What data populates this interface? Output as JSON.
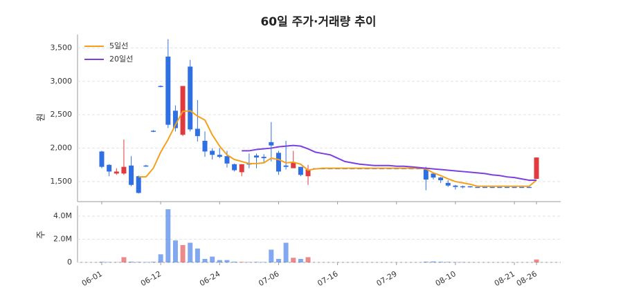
{
  "chart_data": {
    "type": "candlestick",
    "title": "60일 주가·거래량 추이",
    "ylabel": "원",
    "volume_ylabel": "주",
    "categories": [
      "06-01",
      null,
      null,
      null,
      null,
      null,
      null,
      null,
      "06-12",
      null,
      null,
      null,
      null,
      null,
      null,
      null,
      "06-24",
      null,
      null,
      null,
      null,
      null,
      null,
      null,
      "07-06",
      null,
      null,
      null,
      null,
      null,
      null,
      null,
      "07-16",
      null,
      null,
      null,
      null,
      null,
      null,
      null,
      "07-29",
      null,
      null,
      null,
      null,
      null,
      null,
      null,
      "08-10",
      null,
      null,
      null,
      null,
      null,
      null,
      null,
      "08-21",
      null,
      null,
      "08-26"
    ],
    "open": [
      1950,
      1750,
      1620,
      1620,
      1740,
      1580,
      1740,
      2260,
      2930,
      3370,
      2560,
      2200,
      3220,
      2290,
      2110,
      1960,
      1900,
      1880,
      1760,
      1640,
      1770,
      1890,
      1870,
      2090,
      1930,
      1740,
      1700,
      1720,
      1580,
      1700,
      1700,
      1700,
      1700,
      1700,
      1700,
      1700,
      1700,
      1700,
      1700,
      1700,
      1700,
      1700,
      1700,
      1700,
      1680,
      1620,
      1560,
      1480,
      1440,
      1430,
      1430,
      1420,
      1420,
      1420,
      1420,
      1420,
      1420,
      1420,
      1420,
      1540
    ],
    "high": [
      1960,
      1760,
      1700,
      2130,
      1880,
      1590,
      1750,
      2270,
      2940,
      3630,
      2640,
      2930,
      3320,
      2720,
      2250,
      2000,
      2000,
      1960,
      1770,
      1760,
      1920,
      1920,
      1910,
      2390,
      1960,
      2110,
      1960,
      1720,
      1750,
      1700,
      1700,
      1700,
      1700,
      1700,
      1700,
      1700,
      1700,
      1700,
      1700,
      1700,
      1700,
      1700,
      1700,
      1700,
      1720,
      1630,
      1570,
      1520,
      1450,
      1440,
      1430,
      1420,
      1420,
      1420,
      1420,
      1420,
      1420,
      1420,
      1420,
      1860
    ],
    "low": [
      1700,
      1580,
      1600,
      1600,
      1430,
      1320,
      1720,
      2240,
      2910,
      2300,
      2250,
      2180,
      2250,
      2100,
      1870,
      1830,
      1850,
      1710,
      1650,
      1580,
      1700,
      1700,
      1780,
      1800,
      1600,
      1680,
      1700,
      1580,
      1450,
      1700,
      1700,
      1700,
      1700,
      1700,
      1700,
      1700,
      1700,
      1700,
      1700,
      1700,
      1700,
      1700,
      1700,
      1700,
      1370,
      1530,
      1480,
      1420,
      1380,
      1400,
      1410,
      1420,
      1420,
      1420,
      1420,
      1420,
      1420,
      1420,
      1420,
      1540
    ],
    "close": [
      1720,
      1650,
      1650,
      1720,
      1450,
      1330,
      1730,
      2250,
      2920,
      2350,
      2300,
      2930,
      2280,
      2180,
      1950,
      1900,
      1870,
      1770,
      1670,
      1760,
      1760,
      1860,
      1850,
      2040,
      1650,
      1720,
      1780,
      1600,
      1680,
      1700,
      1700,
      1700,
      1700,
      1700,
      1700,
      1700,
      1700,
      1700,
      1700,
      1700,
      1700,
      1700,
      1700,
      1700,
      1530,
      1560,
      1520,
      1440,
      1420,
      1420,
      1420,
      1420,
      1420,
      1420,
      1420,
      1420,
      1420,
      1420,
      1420,
      1860
    ],
    "volume": [
      50000,
      30000,
      20000,
      450000,
      60000,
      40000,
      30000,
      50000,
      700000,
      4600000,
      1900000,
      1500000,
      1700000,
      1200000,
      300000,
      500000,
      200000,
      200000,
      60000,
      40000,
      30000,
      40000,
      30000,
      1100000,
      300000,
      1700000,
      400000,
      300000,
      450000,
      0,
      0,
      0,
      0,
      0,
      0,
      0,
      0,
      0,
      0,
      0,
      0,
      0,
      0,
      0,
      60000,
      80000,
      50000,
      40000,
      20000,
      20000,
      10000,
      0,
      0,
      0,
      0,
      0,
      0,
      0,
      0,
      250000
    ],
    "lines": [
      {
        "name": "5일선",
        "color": "#f5a01a",
        "values": [
          null,
          null,
          null,
          null,
          null,
          1570,
          1570,
          1700,
          1940,
          2130,
          2350,
          2550,
          2560,
          2480,
          2420,
          2200,
          2030,
          1900,
          1830,
          1800,
          1770,
          1770,
          1780,
          1850,
          1830,
          1780,
          1790,
          1760,
          1670,
          1690,
          1700,
          1700,
          1700,
          1700,
          1700,
          1700,
          1700,
          1700,
          1700,
          1700,
          1700,
          1700,
          1700,
          1700,
          1690,
          1630,
          1590,
          1540,
          1500,
          1480,
          1460,
          1430,
          1430,
          1430,
          1430,
          1430,
          1430,
          1430,
          1430,
          1520
        ]
      },
      {
        "name": "20일선",
        "color": "#7b3fe0",
        "values": [
          null,
          null,
          null,
          null,
          null,
          null,
          null,
          null,
          null,
          null,
          null,
          null,
          null,
          null,
          null,
          null,
          null,
          null,
          null,
          1960,
          1960,
          1980,
          1990,
          2000,
          2020,
          2030,
          2040,
          2030,
          1990,
          1940,
          1920,
          1900,
          1850,
          1800,
          1780,
          1760,
          1750,
          1740,
          1740,
          1740,
          1730,
          1730,
          1720,
          1710,
          1700,
          1690,
          1680,
          1670,
          1660,
          1650,
          1640,
          1630,
          1620,
          1600,
          1590,
          1570,
          1560,
          1540,
          1520,
          1520
        ]
      }
    ],
    "up_color": "#e03a3e",
    "down_color": "#2f6fe4",
    "ylim": [
      1200,
      3700
    ],
    "yticks": [
      {
        "value": 1500,
        "label": "1,500"
      },
      {
        "value": 2000,
        "label": "2,000"
      },
      {
        "value": 2500,
        "label": "2,500"
      },
      {
        "value": 3000,
        "label": "3,000"
      },
      {
        "value": 3500,
        "label": "3,500"
      }
    ],
    "volume_ylim": [
      0,
      4900000
    ],
    "volume_yticks": [
      0,
      {
        "value": 2000000,
        "label": "2.0M"
      },
      {
        "value": 4000000,
        "label": "4.0M"
      }
    ],
    "grid": true,
    "legend": "upper-left"
  }
}
